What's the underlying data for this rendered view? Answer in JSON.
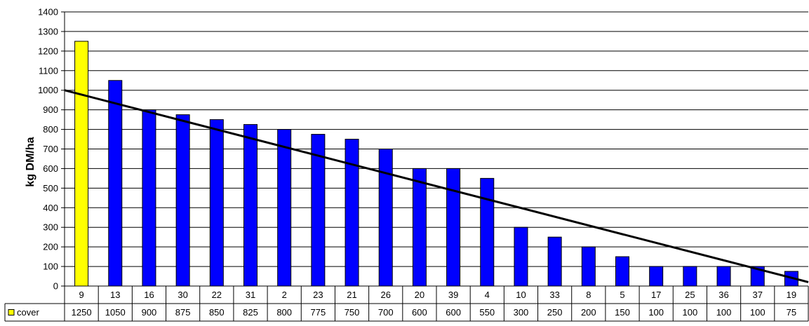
{
  "chart_data": {
    "type": "bar",
    "ylabel": "kg DM/ha",
    "ylim": [
      0,
      1400
    ],
    "ytick_step": 100,
    "grid": true,
    "categories": [
      "9",
      "13",
      "16",
      "30",
      "22",
      "31",
      "2",
      "23",
      "21",
      "26",
      "20",
      "39",
      "4",
      "10",
      "33",
      "8",
      "5",
      "17",
      "25",
      "36",
      "37",
      "19"
    ],
    "series": [
      {
        "name": "cover",
        "values": [
          1250,
          1050,
          900,
          875,
          850,
          825,
          800,
          775,
          750,
          700,
          600,
          600,
          550,
          300,
          250,
          200,
          150,
          100,
          100,
          100,
          100,
          75
        ]
      }
    ],
    "highlight": {
      "category_index": 0,
      "color": "#ffff00"
    },
    "bar_color": "#0000ff",
    "trendline": {
      "type": "linear",
      "start_value": 1000,
      "end_value": 20,
      "color": "#000000"
    },
    "legend_placement": "data-table-left"
  }
}
